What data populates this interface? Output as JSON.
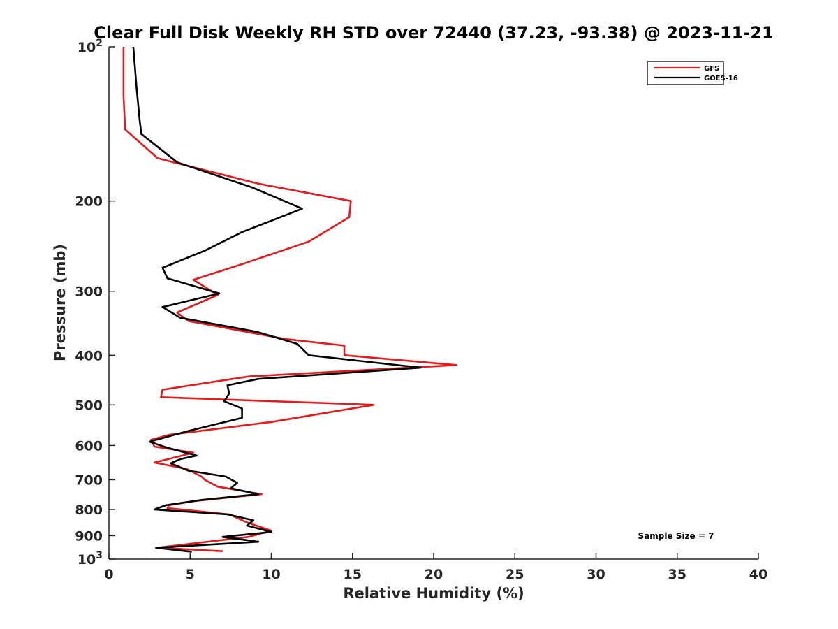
{
  "chart_data": {
    "type": "line",
    "title": "Clear Full Disk Weekly RH STD over 72440 (37.23, -93.38) @ 2023-11-21",
    "xlabel": "Relative Humidity (%)",
    "ylabel": "Pressure (mb)",
    "xlim": [
      0,
      40
    ],
    "ylim": [
      100,
      1000
    ],
    "yscale": "log",
    "y_reversed": true,
    "grid": false,
    "legend_position": "top-right",
    "x_ticks": [
      "0",
      "5",
      "10",
      "15",
      "20",
      "25",
      "30",
      "35",
      "40"
    ],
    "x_tick_values": [
      0,
      5,
      10,
      15,
      20,
      25,
      30,
      35,
      40
    ],
    "y_ticks": [
      {
        "value": 100,
        "base": "10",
        "exp": "2"
      },
      {
        "value": 200,
        "label": "200"
      },
      {
        "value": 300,
        "label": "300"
      },
      {
        "value": 400,
        "label": "400"
      },
      {
        "value": 500,
        "label": "500"
      },
      {
        "value": 600,
        "label": "600"
      },
      {
        "value": 700,
        "label": "700"
      },
      {
        "value": 800,
        "label": "800"
      },
      {
        "value": 900,
        "label": "900"
      },
      {
        "value": 1000,
        "base": "10",
        "exp": "3"
      }
    ],
    "annotation": "Sample Size = 7",
    "series": [
      {
        "name": "GFS",
        "color": "#e41a1c",
        "points": [
          [
            0.9,
            100
          ],
          [
            0.9,
            125
          ],
          [
            1.0,
            145
          ],
          [
            3.0,
            165
          ],
          [
            9.2,
            185
          ],
          [
            14.9,
            200
          ],
          [
            14.8,
            215
          ],
          [
            12.3,
            240
          ],
          [
            8.3,
            265
          ],
          [
            5.2,
            285
          ],
          [
            6.7,
            305
          ],
          [
            4.2,
            330
          ],
          [
            4.9,
            343
          ],
          [
            10.9,
            372
          ],
          [
            14.5,
            383
          ],
          [
            14.5,
            400
          ],
          [
            21.4,
            418
          ],
          [
            8.6,
            440
          ],
          [
            3.3,
            467
          ],
          [
            3.2,
            483
          ],
          [
            16.3,
            500
          ],
          [
            10.0,
            540
          ],
          [
            3.7,
            572
          ],
          [
            2.6,
            585
          ],
          [
            2.8,
            603
          ],
          [
            5.2,
            620
          ],
          [
            2.8,
            648
          ],
          [
            4.8,
            667
          ],
          [
            5.7,
            690
          ],
          [
            5.9,
            700
          ],
          [
            6.7,
            722
          ],
          [
            9.4,
            747
          ],
          [
            5.3,
            770
          ],
          [
            3.7,
            785
          ],
          [
            3.6,
            795
          ],
          [
            7.4,
            818
          ],
          [
            8.5,
            848
          ],
          [
            10.0,
            880
          ],
          [
            8.6,
            905
          ],
          [
            3.0,
            950
          ],
          [
            7.0,
            965
          ]
        ]
      },
      {
        "name": "GOES-16",
        "color": "#000000",
        "points": [
          [
            1.5,
            100
          ],
          [
            1.7,
            120
          ],
          [
            1.9,
            140
          ],
          [
            2.0,
            148
          ],
          [
            4.2,
            168
          ],
          [
            8.8,
            188
          ],
          [
            11.9,
            207
          ],
          [
            8.2,
            230
          ],
          [
            5.9,
            250
          ],
          [
            3.3,
            270
          ],
          [
            3.6,
            283
          ],
          [
            6.8,
            303
          ],
          [
            3.3,
            322
          ],
          [
            4.4,
            338
          ],
          [
            9.1,
            360
          ],
          [
            11.6,
            380
          ],
          [
            12.3,
            400
          ],
          [
            19.2,
            423
          ],
          [
            9.2,
            445
          ],
          [
            7.3,
            458
          ],
          [
            7.4,
            475
          ],
          [
            7.1,
            492
          ],
          [
            8.2,
            508
          ],
          [
            8.2,
            530
          ],
          [
            4.9,
            562
          ],
          [
            2.5,
            590
          ],
          [
            3.5,
            605
          ],
          [
            5.4,
            628
          ],
          [
            4.4,
            638
          ],
          [
            3.8,
            650
          ],
          [
            4.9,
            672
          ],
          [
            7.2,
            690
          ],
          [
            7.9,
            710
          ],
          [
            7.5,
            727
          ],
          [
            9.2,
            747
          ],
          [
            5.6,
            767
          ],
          [
            3.5,
            785
          ],
          [
            2.8,
            800
          ],
          [
            7.3,
            818
          ],
          [
            8.9,
            840
          ],
          [
            8.5,
            860
          ],
          [
            10.0,
            885
          ],
          [
            7.0,
            905
          ],
          [
            9.2,
            925
          ],
          [
            2.9,
            950
          ],
          [
            5.1,
            968
          ]
        ]
      }
    ]
  }
}
